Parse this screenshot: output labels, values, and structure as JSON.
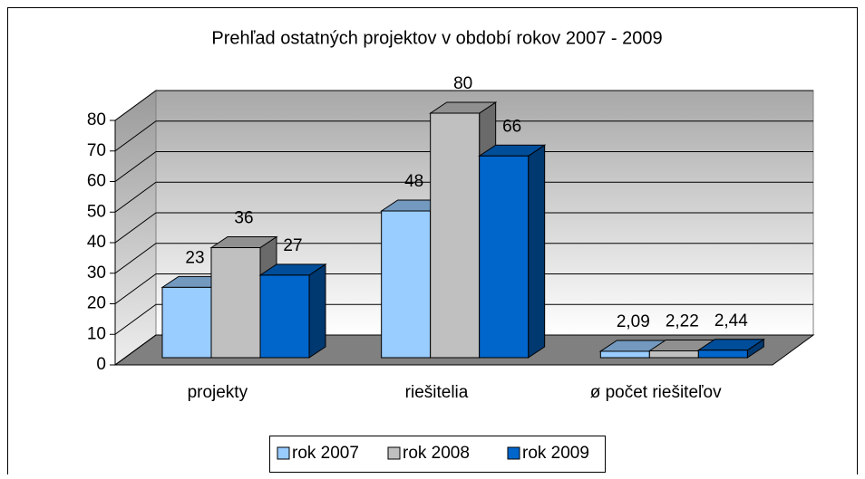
{
  "chart_data": {
    "type": "bar3d",
    "title": "Prehľad ostatných projektov v období rokov 2007 - 2009",
    "categories": [
      "projekty",
      "riešitelia",
      "ø počet riešiteľov"
    ],
    "series": [
      {
        "name": "rok 2007",
        "color": "#99ccff",
        "values": [
          23,
          48,
          2.09
        ],
        "value_labels": [
          "23",
          "48",
          "2,09"
        ]
      },
      {
        "name": "rok 2008",
        "color": "#c0c0c0",
        "values": [
          36,
          80,
          2.22
        ],
        "value_labels": [
          "36",
          "80",
          "2,22"
        ]
      },
      {
        "name": "rok 2009",
        "color": "#0066cc",
        "values": [
          27,
          66,
          2.44
        ],
        "value_labels": [
          "27",
          "66",
          "2,44"
        ]
      }
    ],
    "ylim": [
      0,
      80
    ],
    "yticks": [
      0,
      10,
      20,
      30,
      40,
      50,
      60,
      70,
      80
    ],
    "grid": true,
    "legend": "bottom"
  }
}
